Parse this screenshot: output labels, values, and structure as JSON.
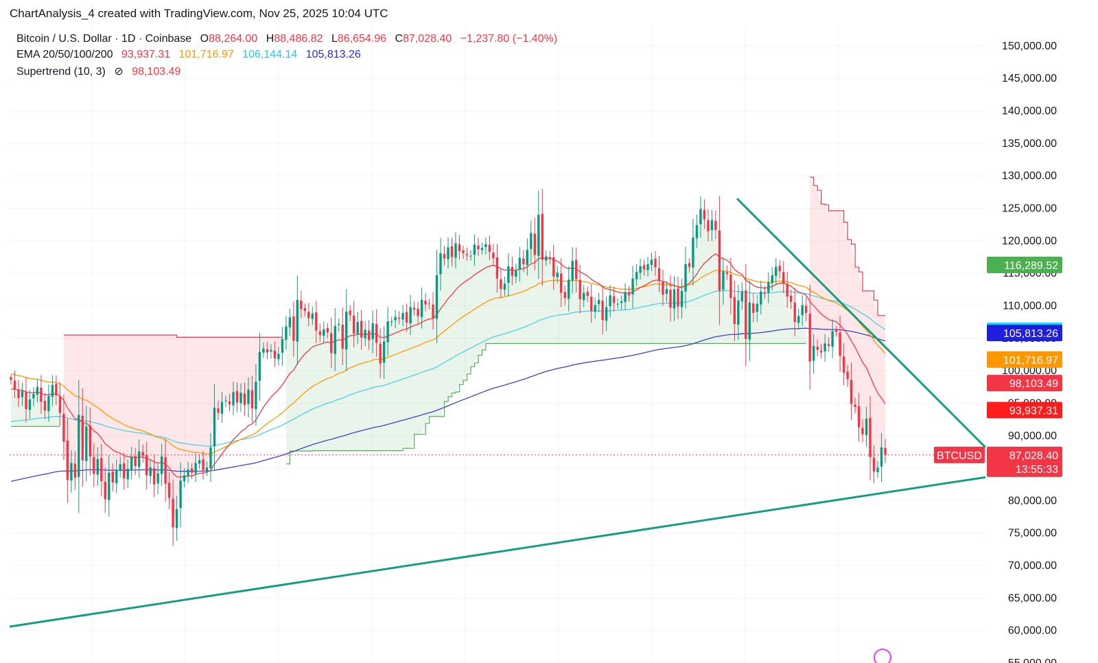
{
  "header": {
    "title": "ChartAnalysis_4 created with TradingView.com, Nov 25, 2025 10:04 UTC"
  },
  "legend": {
    "symbol": "Bitcoin / U.S. Dollar · 1D · Coinbase",
    "open_label": "O",
    "open": "88,264.00",
    "high_label": "H",
    "high": "88,486.82",
    "low_label": "L",
    "low": "86,654.96",
    "close_label": "C",
    "close": "87,028.40",
    "change": "−1,237.80 (−1.40%)",
    "ema_label": "EMA 20/50/100/200",
    "ema20": "93,937.31",
    "ema50": "101,716.97",
    "ema100": "106,144.14",
    "ema200": "105,813.26",
    "supertrend_label": "Supertrend (10, 3)",
    "supertrend_icon": "eye-off-icon",
    "supertrend_value": "98,103.49"
  },
  "colors": {
    "up": "#089981",
    "down": "#f23645",
    "ema20": "#f23645",
    "ema50": "#ff9800",
    "ema100": "#4dd0e1",
    "ema200": "#3f3fc8",
    "trendline": "#139e82",
    "supertrend_up": "#4caf50",
    "supertrend_down": "#e53950"
  },
  "chart_data": {
    "type": "candlestick",
    "symbol_tag": "BTCUSD",
    "ylim": [
      55000,
      152000
    ],
    "y_ticks": [
      "150,000.00",
      "145,000.00",
      "140,000.00",
      "135,000.00",
      "130,000.00",
      "125,000.00",
      "120,000.00",
      "115,000.00",
      "110,000.00",
      "105,000.00",
      "100,000.00",
      "95,000.00",
      "90,000.00",
      "85,000.00",
      "80,000.00",
      "75,000.00",
      "70,000.00",
      "65,000.00",
      "60,000.00",
      "55,000.00"
    ],
    "grid": true,
    "price_labels": [
      {
        "text": "116,289.52",
        "value": 116289.52,
        "color": "#4caf50"
      },
      {
        "text": "106,144.14",
        "value": 106144.14,
        "color": "#00e5ff"
      },
      {
        "text": "105,813.26",
        "value": 105813.26,
        "color": "#1f1fe0"
      },
      {
        "text": "101,716.97",
        "value": 101716.97,
        "color": "#ff9800"
      },
      {
        "text": "98,103.49",
        "value": 98103.49,
        "color": "#f23645"
      },
      {
        "text": "93,937.31",
        "value": 93937.31,
        "color": "#ff1c1c"
      }
    ],
    "last_price": {
      "text": "87,028.40",
      "value": 87028.4,
      "countdown": "13:55:33",
      "color": "#f23645"
    },
    "closes": [
      98600,
      97200,
      95800,
      96900,
      94100,
      95600,
      96400,
      97500,
      95200,
      93900,
      96100,
      97800,
      96200,
      93500,
      89100,
      83200,
      85800,
      83500,
      93200,
      86200,
      91400,
      86800,
      84100,
      86400,
      83000,
      80200,
      84300,
      82800,
      84700,
      85600,
      83400,
      84900,
      86700,
      85300,
      87600,
      86900,
      83900,
      85100,
      82500,
      84200,
      86800,
      82600,
      80400,
      75900,
      78700,
      83100,
      83900,
      84800,
      84300,
      85800,
      86200,
      84700,
      85100,
      88200,
      94300,
      93500,
      95200,
      95400,
      94800,
      96700,
      95100,
      96600,
      94700,
      97100,
      94200,
      98300,
      102900,
      103400,
      102800,
      103200,
      101900,
      102600,
      104900,
      106800,
      108200,
      104600,
      110900,
      109500,
      109200,
      108100,
      108800,
      106200,
      105500,
      106400,
      105900,
      102700,
      106900,
      107200,
      103400,
      109100,
      108600,
      105700,
      107500,
      105100,
      106300,
      104700,
      107300,
      104300,
      101100,
      104500,
      107600,
      107600,
      108300,
      108000,
      108900,
      107400,
      109800,
      109400,
      108400,
      110900,
      110200,
      110300,
      108100,
      114700,
      118100,
      117300,
      119000,
      117500,
      119600,
      118400,
      118100,
      117800,
      117700,
      119400,
      118700,
      118900,
      119500,
      118300,
      117300,
      114200,
      112600,
      113400,
      116100,
      114600,
      115400,
      117400,
      116400,
      118600,
      121200,
      117800,
      124000,
      117100,
      117600,
      117300,
      114500,
      115100,
      112000,
      111200,
      114000,
      116900,
      114100,
      111000,
      112000,
      111500,
      109200,
      110100,
      110900,
      107800,
      109800,
      111600,
      110400,
      110300,
      110700,
      112100,
      111600,
      114200,
      115200,
      116100,
      115600,
      116400,
      117100,
      115900,
      113800,
      111700,
      112600,
      109700,
      112500,
      109900,
      112300,
      116400,
      116000,
      120500,
      122400,
      124900,
      123300,
      121500,
      123200,
      121700,
      112300,
      115300,
      114900,
      111200,
      107200,
      110800,
      112200,
      104900,
      110500,
      108900,
      110300,
      112200,
      111900,
      113600,
      114700,
      116000,
      115300,
      113500,
      111400,
      110600,
      107500,
      108400,
      110100,
      108900,
      101400,
      103800,
      103200,
      102800,
      104200,
      103800,
      106100,
      106000,
      102300,
      99700,
      98700,
      94900,
      94400,
      91300,
      90200,
      92600,
      86700,
      84500,
      85100,
      88200,
      87028
    ]
  }
}
